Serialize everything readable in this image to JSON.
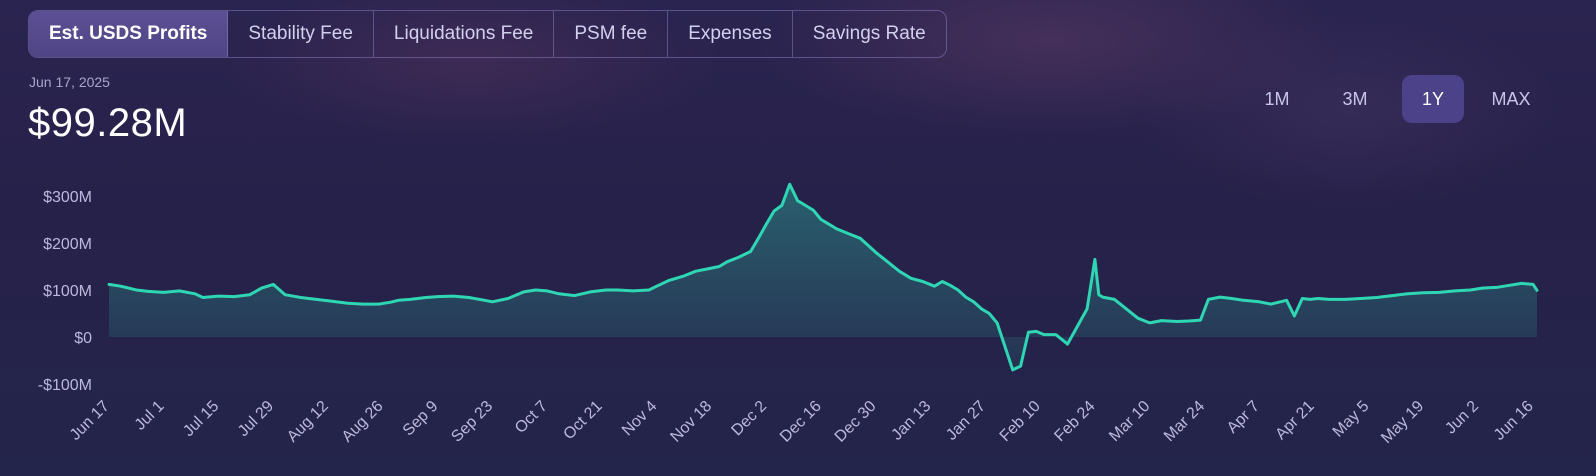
{
  "tabs": [
    {
      "label": "Est. USDS Profits",
      "active": true
    },
    {
      "label": "Stability Fee",
      "active": false
    },
    {
      "label": "Liquidations Fee",
      "active": false
    },
    {
      "label": "PSM fee",
      "active": false
    },
    {
      "label": "Expenses",
      "active": false
    },
    {
      "label": "Savings Rate",
      "active": false
    }
  ],
  "summary": {
    "date": "Jun 17, 2025",
    "value": "$99.28M"
  },
  "ranges": [
    {
      "label": "1M",
      "active": false
    },
    {
      "label": "3M",
      "active": false
    },
    {
      "label": "1Y",
      "active": true
    },
    {
      "label": "MAX",
      "active": false
    }
  ],
  "colors": {
    "line": "#2fd6b4",
    "tab_active": "#564a8c",
    "range_active": "#4c4289"
  },
  "chart_data": {
    "type": "area",
    "title": "",
    "xlabel": "",
    "ylabel": "",
    "ylim": [
      -100,
      330
    ],
    "y_unit": "USD millions",
    "y_ticks": [
      -100,
      0,
      100,
      200,
      300
    ],
    "y_tick_labels": [
      "-$100M",
      "$0",
      "$100M",
      "$200M",
      "$300M"
    ],
    "x_tick_labels": [
      "Jun 17",
      "Jul 1",
      "Jul 15",
      "Jul 29",
      "Aug 12",
      "Aug 26",
      "Sep 9",
      "Sep 23",
      "Oct 7",
      "Oct 21",
      "Nov 4",
      "Nov 18",
      "Dec 2",
      "Dec 16",
      "Dec 30",
      "Jan 13",
      "Jan 27",
      "Feb 10",
      "Feb 24",
      "Mar 10",
      "Mar 24",
      "Apr 7",
      "Apr 21",
      "May 5",
      "May 19",
      "Jun 2",
      "Jun 16"
    ],
    "grid": false,
    "legend": "none",
    "series": [
      {
        "x": [
          "2024-06-17",
          "2024-06-20",
          "2024-06-24",
          "2024-06-27",
          "2024-07-01",
          "2024-07-05",
          "2024-07-09",
          "2024-07-11",
          "2024-07-15",
          "2024-07-19",
          "2024-07-23",
          "2024-07-26",
          "2024-07-29",
          "2024-08-01",
          "2024-08-05",
          "2024-08-09",
          "2024-08-13",
          "2024-08-17",
          "2024-08-21",
          "2024-08-25",
          "2024-08-28",
          "2024-08-30",
          "2024-09-02",
          "2024-09-06",
          "2024-09-09",
          "2024-09-13",
          "2024-09-17",
          "2024-09-21",
          "2024-09-23",
          "2024-09-27",
          "2024-10-01",
          "2024-10-04",
          "2024-10-07",
          "2024-10-10",
          "2024-10-14",
          "2024-10-18",
          "2024-10-22",
          "2024-10-25",
          "2024-10-29",
          "2024-11-02",
          "2024-11-04",
          "2024-11-07",
          "2024-11-11",
          "2024-11-14",
          "2024-11-17",
          "2024-11-20",
          "2024-11-22",
          "2024-11-25",
          "2024-11-28",
          "2024-11-30",
          "2024-12-02",
          "2024-12-04",
          "2024-12-06",
          "2024-12-08",
          "2024-12-10",
          "2024-12-12",
          "2024-12-14",
          "2024-12-16",
          "2024-12-18",
          "2024-12-20",
          "2024-12-23",
          "2024-12-26",
          "2024-12-30",
          "2025-01-02",
          "2025-01-05",
          "2025-01-08",
          "2025-01-11",
          "2025-01-14",
          "2025-01-16",
          "2025-01-18",
          "2025-01-20",
          "2025-01-22",
          "2025-01-24",
          "2025-01-26",
          "2025-01-28",
          "2025-01-30",
          "2025-02-01",
          "2025-02-03",
          "2025-02-05",
          "2025-02-07",
          "2025-02-09",
          "2025-02-11",
          "2025-02-14",
          "2025-02-17",
          "2025-02-20",
          "2025-02-22",
          "2025-02-24",
          "2025-02-25",
          "2025-02-26",
          "2025-03-01",
          "2025-03-04",
          "2025-03-07",
          "2025-03-10",
          "2025-03-13",
          "2025-03-17",
          "2025-03-20",
          "2025-03-23",
          "2025-03-25",
          "2025-03-28",
          "2025-03-31",
          "2025-04-03",
          "2025-04-07",
          "2025-04-10",
          "2025-04-14",
          "2025-04-16",
          "2025-04-18",
          "2025-04-20",
          "2025-04-22",
          "2025-04-25",
          "2025-04-29",
          "2025-05-03",
          "2025-05-07",
          "2025-05-11",
          "2025-05-15",
          "2025-05-19",
          "2025-05-23",
          "2025-05-27",
          "2025-05-31",
          "2025-06-03",
          "2025-06-07",
          "2025-06-10",
          "2025-06-13",
          "2025-06-16",
          "2025-06-17"
        ],
        "values": [
          112,
          108,
          100,
          97,
          95,
          98,
          92,
          84,
          87,
          86,
          90,
          104,
          112,
          90,
          84,
          80,
          76,
          72,
          70,
          70,
          74,
          78,
          80,
          84,
          86,
          87,
          84,
          78,
          75,
          82,
          96,
          100,
          98,
          92,
          88,
          96,
          100,
          100,
          98,
          100,
          108,
          120,
          130,
          140,
          145,
          150,
          160,
          170,
          182,
          210,
          240,
          268,
          280,
          325,
          290,
          280,
          270,
          250,
          240,
          230,
          220,
          210,
          180,
          160,
          140,
          125,
          118,
          108,
          118,
          110,
          100,
          85,
          75,
          60,
          50,
          30,
          -20,
          -70,
          -62,
          10,
          12,
          5,
          5,
          -15,
          30,
          60,
          165,
          90,
          85,
          80,
          60,
          40,
          30,
          35,
          33,
          34,
          36,
          80,
          85,
          82,
          78,
          75,
          70,
          78,
          45,
          82,
          80,
          82,
          80,
          80,
          82,
          84,
          88,
          92,
          94,
          95,
          98,
          100,
          104,
          106,
          110,
          114,
          112,
          99.28
        ]
      }
    ]
  }
}
